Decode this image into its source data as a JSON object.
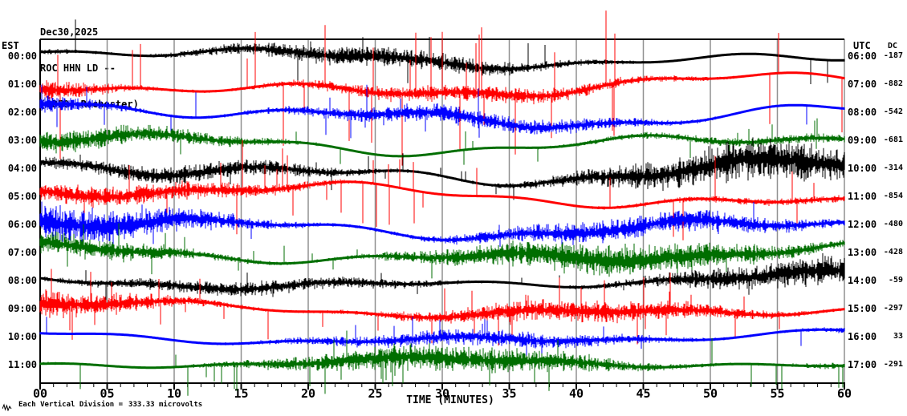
{
  "header": {
    "date": "Dec30,2025",
    "station": "ROC HHN LD --",
    "location": "(LDEO, Rochester)"
  },
  "left_axis": {
    "label": "EST"
  },
  "right_axis": {
    "label": "UTC"
  },
  "dc_axis": {
    "label": "DC"
  },
  "x_axis": {
    "label": "TIME (MINUTES)",
    "tick_labels": [
      "00",
      "05",
      "10",
      "15",
      "20",
      "25",
      "30",
      "35",
      "40",
      "45",
      "50",
      "55",
      "60"
    ],
    "minutes_min": 0,
    "minutes_max": 60,
    "major_tick_minutes": 5,
    "minor_tick_minutes": 1
  },
  "footer": {
    "scale_label": "Each Vertical Division =",
    "scale_value": "333.33 microvolts",
    "icon": "seismic-wiggle-icon"
  },
  "colors": {
    "black": "#000000",
    "red": "#ff0000",
    "blue": "#0000ff",
    "green": "#006e00",
    "grid": "#909090",
    "frame": "#000000",
    "background": "#ffffff"
  },
  "chart_data": {
    "type": "line",
    "title": "ROC HHN LD -- (LDEO, Rochester) Dec30,2025 helicorder",
    "xlabel": "TIME (MINUTES)",
    "x_range": [
      0,
      60
    ],
    "grid": true,
    "rows": 12,
    "traces": [
      {
        "est": "00:00",
        "utc": "06:00",
        "dc": "-187",
        "color": "black",
        "seed": 101,
        "amp": 13,
        "wander": 10,
        "spike_prob": 0.018,
        "spike_amp": 38,
        "spike_down_bias": 0.5
      },
      {
        "est": "01:00",
        "utc": "07:00",
        "dc": "-882",
        "color": "red",
        "seed": 202,
        "amp": 13,
        "wander": 12,
        "spike_prob": 0.035,
        "spike_amp": 90,
        "spike_down_bias": 0.5
      },
      {
        "est": "02:00",
        "utc": "08:00",
        "dc": "-542",
        "color": "blue",
        "seed": 303,
        "amp": 13,
        "wander": 13,
        "spike_prob": 0.02,
        "spike_amp": 30,
        "spike_down_bias": 0.5
      },
      {
        "est": "03:00",
        "utc": "09:00",
        "dc": "-681",
        "color": "green",
        "seed": 404,
        "amp": 12,
        "wander": 12,
        "spike_prob": 0.015,
        "spike_amp": 25,
        "spike_down_bias": 0.5
      },
      {
        "est": "04:00",
        "utc": "10:00",
        "dc": "-314",
        "color": "black",
        "seed": 505,
        "amp": 13,
        "wander": 14,
        "spike_prob": 0.012,
        "spike_amp": 22,
        "spike_down_bias": 0.5
      },
      {
        "est": "05:00",
        "utc": "11:00",
        "dc": "-854",
        "color": "red",
        "seed": 606,
        "amp": 11,
        "wander": 12,
        "spike_prob": 0.025,
        "spike_amp": 55,
        "spike_down_bias": 0.5
      },
      {
        "est": "06:00",
        "utc": "12:00",
        "dc": "-480",
        "color": "blue",
        "seed": 707,
        "amp": 12,
        "wander": 12,
        "spike_prob": 0.014,
        "spike_amp": 22,
        "spike_down_bias": 0.5
      },
      {
        "est": "07:00",
        "utc": "13:00",
        "dc": "-428",
        "color": "green",
        "seed": 808,
        "amp": 11,
        "wander": 10,
        "spike_prob": 0.015,
        "spike_amp": 25,
        "spike_down_bias": 0.5
      },
      {
        "est": "08:00",
        "utc": "14:00",
        "dc": "-59",
        "color": "black",
        "seed": 909,
        "amp": 10,
        "wander": 8,
        "spike_prob": 0.012,
        "spike_amp": 18,
        "spike_down_bias": 0.5
      },
      {
        "est": "09:00",
        "utc": "15:00",
        "dc": "-297",
        "color": "red",
        "seed": 1010,
        "amp": 10,
        "wander": 8,
        "spike_prob": 0.028,
        "spike_amp": 38,
        "spike_down_bias": 0.5
      },
      {
        "est": "10:00",
        "utc": "16:00",
        "dc": "33",
        "color": "blue",
        "seed": 1111,
        "amp": 9,
        "wander": 7,
        "spike_prob": 0.016,
        "spike_amp": 22,
        "spike_down_bias": 0.5
      },
      {
        "est": "11:00",
        "utc": "17:00",
        "dc": "-291",
        "color": "green",
        "seed": 1212,
        "amp": 9,
        "wander": 6,
        "spike_prob": 0.03,
        "spike_amp": 38,
        "spike_down_bias": 0.75
      }
    ]
  }
}
